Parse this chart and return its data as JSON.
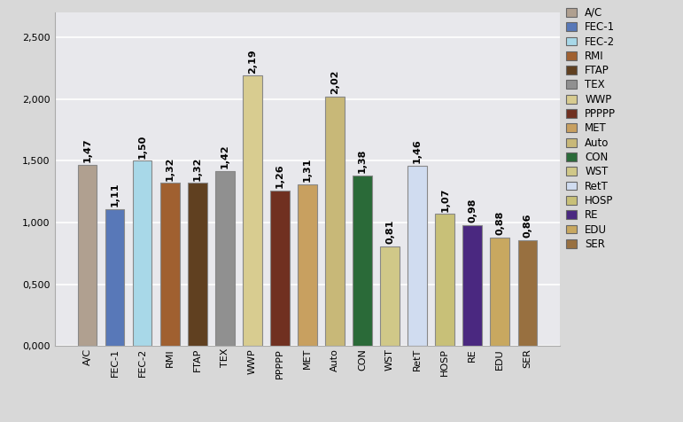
{
  "categories": [
    "A/C",
    "FEC-1",
    "FEC-2",
    "RMI",
    "FTAP",
    "TEX",
    "WWP",
    "PPPPP",
    "MET",
    "Auto",
    "CON",
    "WST",
    "RetT",
    "HOSP",
    "RE",
    "EDU",
    "SER"
  ],
  "values": [
    1.47,
    1.11,
    1.5,
    1.32,
    1.32,
    1.42,
    2.19,
    1.26,
    1.31,
    2.02,
    1.38,
    0.81,
    1.46,
    1.07,
    0.98,
    0.88,
    0.86
  ],
  "bar_colors": [
    "#B0A090",
    "#5878B8",
    "#A8D8E8",
    "#A06030",
    "#604020",
    "#909090",
    "#D8CC90",
    "#703020",
    "#C8A060",
    "#C8B878",
    "#2A6A38",
    "#D0C888",
    "#D0DCF0",
    "#C8C078",
    "#4A2880",
    "#C8A860",
    "#987040"
  ],
  "legend_labels": [
    "A/C",
    "FEC-1",
    "FEC-2",
    "RMI",
    "FTAP",
    "TEX",
    "WWP",
    "PPPPP",
    "MET",
    "Auto",
    "CON",
    "WST",
    "RetT",
    "HOSP",
    "RE",
    "EDU",
    "SER"
  ],
  "legend_colors": [
    "#B0A090",
    "#5878B8",
    "#A8D8E8",
    "#A06030",
    "#604020",
    "#909090",
    "#D8CC90",
    "#703020",
    "#C8A060",
    "#C8B878",
    "#2A6A38",
    "#D0C888",
    "#D0DCF0",
    "#C8C078",
    "#4A2880",
    "#C8A860",
    "#987040"
  ],
  "legend_edge_colors": [
    "#888878",
    "#3858A0",
    "#88B8C8",
    "#805020",
    "#402010",
    "#707070",
    "#B8AC70",
    "#502010",
    "#A88040",
    "#A89858",
    "#1A4A28",
    "#B0A868",
    "#B0BCd0",
    "#A8A058",
    "#2A0860",
    "#A88840",
    "#785030"
  ],
  "ylim": [
    0,
    2.7
  ],
  "yticks": [
    0.0,
    0.5,
    1.0,
    1.5,
    2.0,
    2.5
  ],
  "ytick_labels": [
    "0,000",
    "0,500",
    "1,000",
    "1,500",
    "2,000",
    "2,500"
  ],
  "fig_background_color": "#D8D8D8",
  "plot_background_color": "#E8E8EC",
  "grid_color": "#FFFFFF",
  "label_fontsize": 8,
  "value_fontsize": 8,
  "title": ""
}
